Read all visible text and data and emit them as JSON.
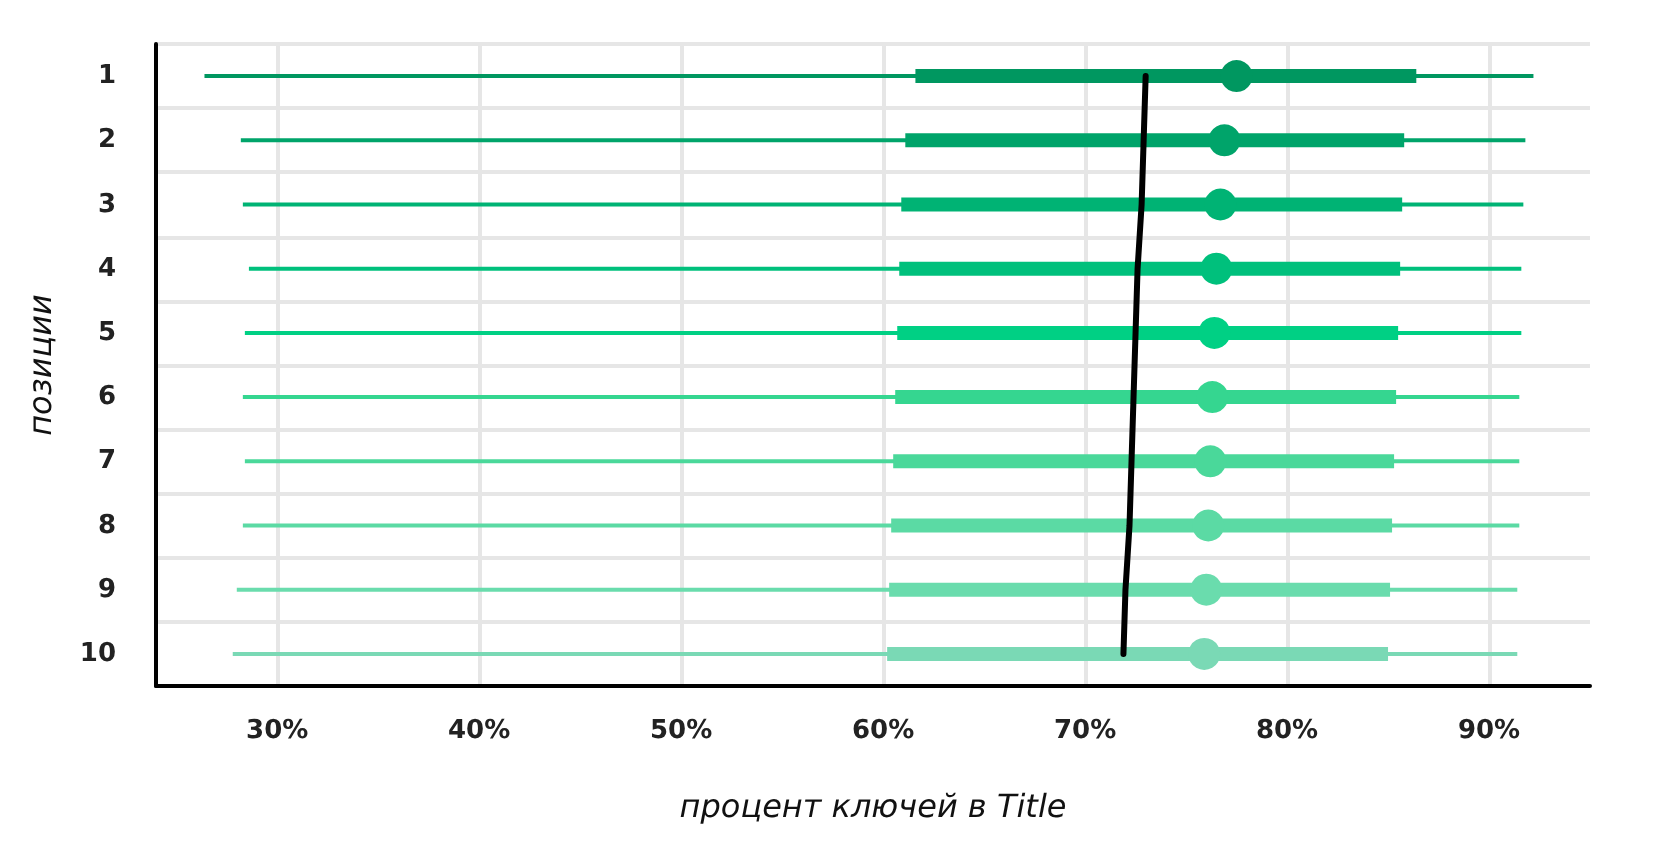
{
  "chart_data": {
    "type": "box",
    "orientation": "horizontal",
    "xlabel": "процент ключей в Title",
    "ylabel": "позиции",
    "categories": [
      "1",
      "2",
      "3",
      "4",
      "5",
      "6",
      "7",
      "8",
      "9",
      "10"
    ],
    "series": [
      {
        "boxes": [
          {
            "low": 26.4,
            "q1": 61.6,
            "median": 77.5,
            "q3": 86.4,
            "high": 92.2
          },
          {
            "low": 28.2,
            "q1": 61.1,
            "median": 76.9,
            "q3": 85.8,
            "high": 91.8
          },
          {
            "low": 28.3,
            "q1": 60.9,
            "median": 76.7,
            "q3": 85.7,
            "high": 91.7
          },
          {
            "low": 28.6,
            "q1": 60.8,
            "median": 76.5,
            "q3": 85.6,
            "high": 91.6
          },
          {
            "low": 28.4,
            "q1": 60.7,
            "median": 76.4,
            "q3": 85.5,
            "high": 91.6
          },
          {
            "low": 28.3,
            "q1": 60.6,
            "median": 76.3,
            "q3": 85.4,
            "high": 91.5
          },
          {
            "low": 28.4,
            "q1": 60.5,
            "median": 76.2,
            "q3": 85.3,
            "high": 91.5
          },
          {
            "low": 28.3,
            "q1": 60.4,
            "median": 76.1,
            "q3": 85.2,
            "high": 91.5
          },
          {
            "low": 28.0,
            "q1": 60.3,
            "median": 76.0,
            "q3": 85.1,
            "high": 91.4
          },
          {
            "low": 27.8,
            "q1": 60.2,
            "median": 75.9,
            "q3": 85.0,
            "high": 91.4
          }
        ],
        "colors": [
          "#009760",
          "#00a46a",
          "#00b374",
          "#00c07c",
          "#00d084",
          "#35d690",
          "#4ad89a",
          "#5bdaa4",
          "#6adcad",
          "#7ad9b5"
        ]
      },
      {
        "type": "line",
        "color": "#000000",
        "values": [
          73.0,
          72.9,
          72.8,
          72.6,
          72.5,
          72.4,
          72.3,
          72.2,
          72.0,
          71.9
        ]
      }
    ],
    "xlim": [
      24,
      95
    ],
    "xticks": [
      {
        "value": 30,
        "label": "30%"
      },
      {
        "value": 40,
        "label": "40%"
      },
      {
        "value": 50,
        "label": "50%"
      },
      {
        "value": 60,
        "label": "60%"
      },
      {
        "value": 70,
        "label": "70%"
      },
      {
        "value": 80,
        "label": "80%"
      },
      {
        "value": 90,
        "label": "90%"
      }
    ],
    "marker": "none",
    "grid": true
  }
}
